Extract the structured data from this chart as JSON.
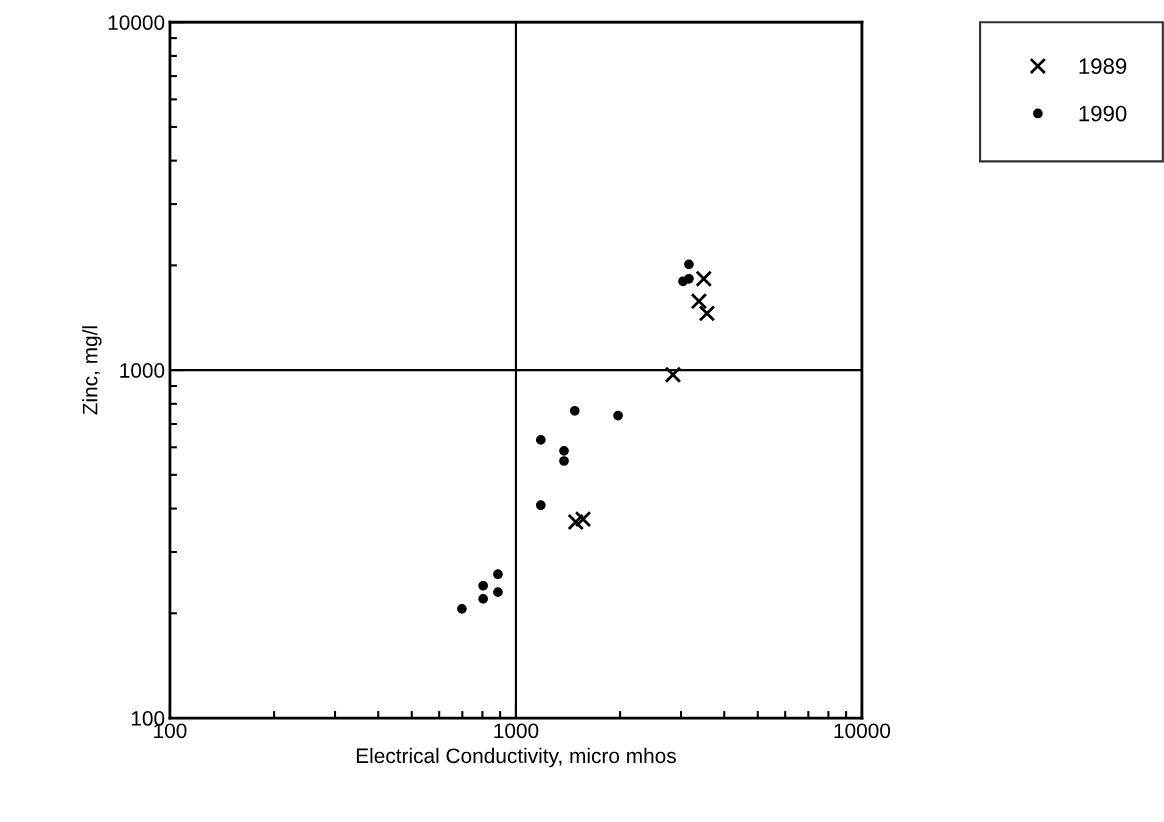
{
  "chart_data": {
    "type": "scatter",
    "xlabel": "Electrical Conductivity, micro mhos",
    "ylabel": "Zinc, mg/l",
    "log": "xy",
    "xlim": [
      100,
      10000
    ],
    "ylim": [
      100,
      10000
    ],
    "xticks": [
      100,
      1000,
      10000
    ],
    "yticks": [
      100,
      1000,
      10000
    ],
    "grid": true,
    "legend": "top right",
    "series": [
      {
        "name": "1989",
        "color": "#000000",
        "marker": "cross",
        "x": [
          3490,
          3380,
          3565,
          2843,
          1489,
          1563
        ],
        "values": [
          1830,
          1578,
          1456,
          970,
          366,
          373
        ]
      },
      {
        "name": "1990",
        "color": "#000000",
        "marker": "circle",
        "x": [
          1479,
          1973,
          1180,
          1377,
          1377,
          1180,
          887,
          804,
          887,
          804,
          698,
          3162,
          3040,
          3162
        ],
        "values": [
          764,
          740,
          630,
          586,
          548,
          409,
          259,
          240,
          230,
          220,
          206,
          2014,
          1800,
          1830
        ]
      }
    ]
  }
}
